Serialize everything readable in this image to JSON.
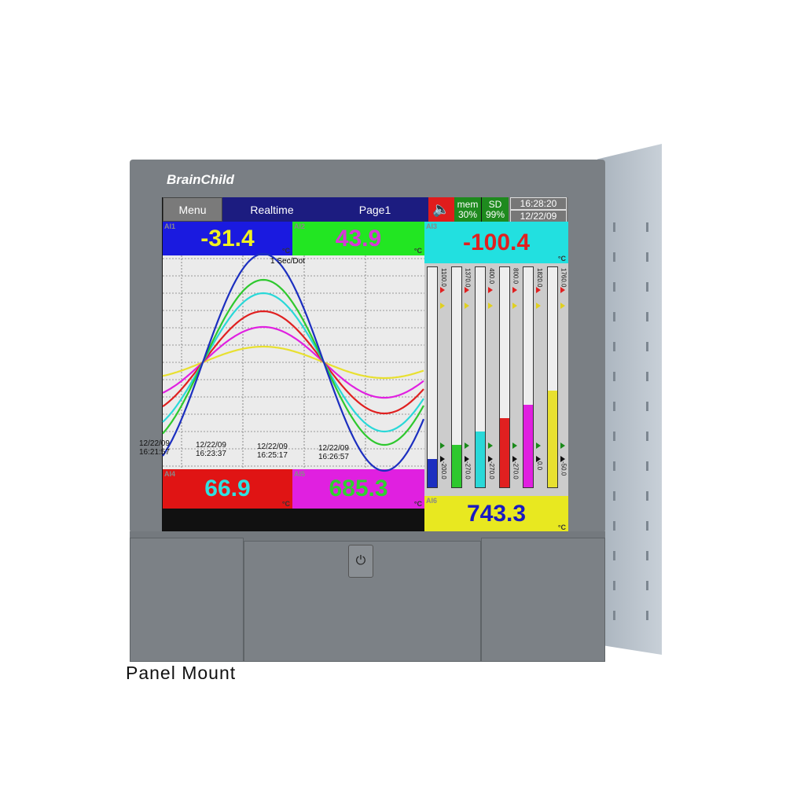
{
  "brand": "BrainChild",
  "caption": "Panel Mount",
  "header": {
    "menu": "Menu",
    "mode": "Realtime",
    "page": "Page1",
    "speaker_icon": "speaker-icon",
    "mem_label": "mem",
    "mem_value": "30%",
    "sd_label": "SD",
    "sd_value": "99%",
    "time": "16:28:20",
    "date": "12/22/09"
  },
  "channels": [
    {
      "tag": "AI1",
      "value": "-31.4",
      "unit": "°C",
      "bg": "#1a1ae0",
      "fg": "#f0f020",
      "min": -200,
      "max": 1100,
      "min_label": "-200.0",
      "max_label": "1100.0",
      "line": "#1c2fc0",
      "amp": 138
    },
    {
      "tag": "AI2",
      "value": "43.9",
      "unit": "°C",
      "bg": "#22e622",
      "fg": "#d838d8",
      "min": -270,
      "max": 1370,
      "min_label": "-270.0",
      "max_label": "1370.0",
      "line": "#2ec82e",
      "amp": 105
    },
    {
      "tag": "AI3",
      "value": "-100.4",
      "unit": "°C",
      "bg": "#22e0e0",
      "fg": "#e02020",
      "min": -270,
      "max": 400,
      "min_label": "-270.0",
      "max_label": "400.0",
      "line": "#2ad8d8",
      "amp": 88
    },
    {
      "tag": "AI4",
      "value": "66.9",
      "unit": "°C",
      "bg": "#e01414",
      "fg": "#30e0e0",
      "min": -270,
      "max": 800,
      "min_label": "-270.0",
      "max_label": "800.0",
      "line": "#e02020",
      "amp": 65
    },
    {
      "tag": "AI5",
      "value": "685.3",
      "unit": "°C",
      "bg": "#e020e0",
      "fg": "#30d030",
      "min": 0,
      "max": 1820,
      "min_label": "0.0",
      "max_label": "1820.0",
      "line": "#e020e0",
      "amp": 45
    },
    {
      "tag": "AI6",
      "value": "743.3",
      "unit": "°C",
      "bg": "#e8e820",
      "fg": "#1a1ac0",
      "min": -50,
      "max": 1760,
      "min_label": "-50.0",
      "max_label": "1760.0",
      "line": "#e8e030",
      "amp": 20
    }
  ],
  "trend": {
    "rate": "1 Sec/Dot",
    "timestamps": [
      [
        "12/22/09",
        "16:21:57"
      ],
      [
        "12/22/09",
        "16:23:37"
      ],
      [
        "12/22/09",
        "16:25:17"
      ],
      [
        "12/22/09",
        "16:26:57"
      ]
    ]
  }
}
